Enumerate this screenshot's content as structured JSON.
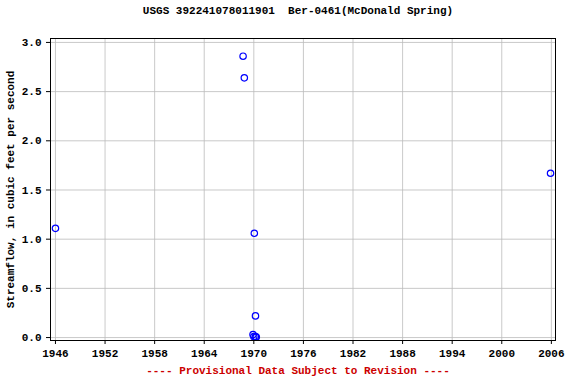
{
  "chart_data": {
    "type": "scatter",
    "title": "USGS 392241078011901  Ber-0461(McDonald Spring)",
    "caption": "---- Provisional Data Subject to Revision ----",
    "y_label": "Streamflow, in cubic feet per second",
    "x": [
      1946.0,
      1968.7,
      1968.85,
      1970.06,
      1970.2,
      1969.9,
      1970.0,
      1970.2,
      1970.3,
      2005.9
    ],
    "values": [
      1.11,
      2.86,
      2.64,
      1.06,
      0.22,
      0.03,
      0.01,
      0.01,
      0.005,
      1.67
    ],
    "color": "#0000ff",
    "marker": "circle",
    "xlim": [
      1945.4,
      2006.5
    ],
    "xticks": [
      1946,
      1952,
      1958,
      1964,
      1970,
      1976,
      1982,
      1988,
      1994,
      2000,
      2006
    ],
    "ylim": [
      -0.03,
      3.04
    ],
    "yticks": [
      {
        "value": 0,
        "label": "0.0"
      },
      {
        "value": 0.5,
        "label": "0.5"
      },
      {
        "value": 1,
        "label": "1.0"
      },
      {
        "value": 1.5,
        "label": "1.5"
      },
      {
        "value": 2,
        "label": "2.0"
      },
      {
        "value": 2.5,
        "label": "2.5"
      },
      {
        "value": 3,
        "label": "3.0"
      }
    ],
    "grid": true
  }
}
